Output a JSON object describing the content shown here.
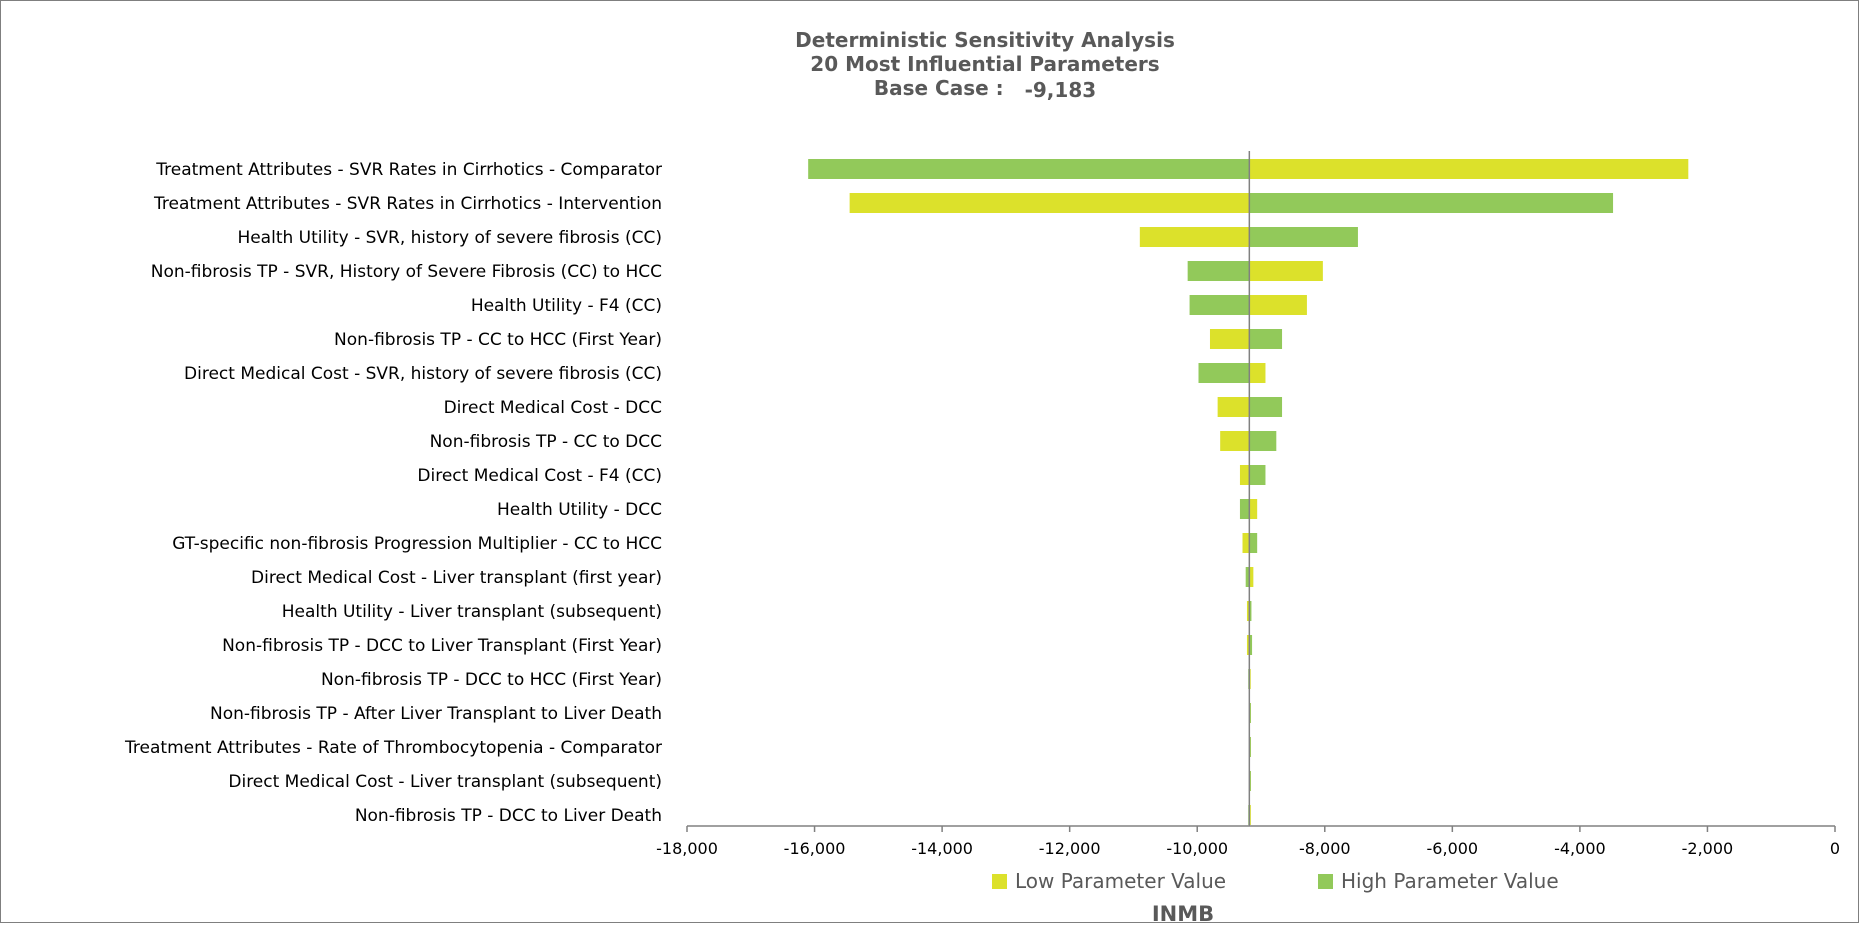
{
  "chart_data": {
    "type": "bar",
    "orientation": "horizontal",
    "title": "Deterministic Sensitivity Analysis",
    "subtitle": "20 Most Influential Parameters",
    "base_case_label": "Base Case :",
    "base_case_display": "-9,183",
    "base_case": -9183,
    "xlabel": "INMB",
    "xlim": [
      -18000,
      0
    ],
    "xticks": [
      -18000,
      -16000,
      -14000,
      -12000,
      -10000,
      -8000,
      -6000,
      -4000,
      -2000,
      0
    ],
    "xtick_labels": [
      "-18,000",
      "-16,000",
      "-14,000",
      "-12,000",
      "-10,000",
      "-8,000",
      "-6,000",
      "-4,000",
      "-2,000",
      "0"
    ],
    "legend_position": "bottom",
    "colors": {
      "low": "#dce12b",
      "high": "#92c95a",
      "axis": "#808080"
    },
    "categories": [
      "Treatment Attributes - SVR Rates in Cirrhotics - Comparator",
      "Treatment Attributes - SVR Rates in Cirrhotics - Intervention",
      "Health Utility - SVR, history of severe fibrosis (CC)",
      "Non-fibrosis TP - SVR, History of Severe Fibrosis (CC) to HCC",
      "Health Utility - F4 (CC)",
      "Non-fibrosis TP - CC to HCC (First Year)",
      "Direct Medical Cost - SVR, history of severe fibrosis (CC)",
      "Direct Medical Cost - DCC",
      "Non-fibrosis TP - CC to DCC",
      "Direct Medical Cost - F4 (CC)",
      "Health Utility - DCC",
      "GT-specific non-fibrosis Progression Multiplier - CC to HCC",
      "Direct Medical Cost - Liver transplant (first year)",
      "Health Utility - Liver transplant (subsequent)",
      "Non-fibrosis TP - DCC to Liver Transplant (First Year)",
      "Non-fibrosis TP - DCC to HCC (First Year)",
      "Non-fibrosis TP - After Liver Transplant to Liver Death",
      "Treatment Attributes - Rate of Thrombocytopenia - Comparator",
      "Direct Medical Cost - Liver transplant (subsequent)",
      "Non-fibrosis TP - DCC to Liver Death"
    ],
    "series": [
      {
        "name": "Low Parameter Value",
        "values": [
          -2300,
          -15450,
          -10900,
          -8030,
          -8280,
          -9800,
          -8930,
          -9680,
          -9640,
          -9330,
          -9060,
          -9290,
          -9120,
          -9220,
          -9220,
          -9185,
          -9183,
          -9183,
          -9183,
          -9183
        ]
      },
      {
        "name": "High Parameter Value",
        "values": [
          -16100,
          -3480,
          -7480,
          -10150,
          -10120,
          -8670,
          -9980,
          -8670,
          -8760,
          -8930,
          -9330,
          -9060,
          -9240,
          -9150,
          -9140,
          -9200,
          -9170,
          -9170,
          -9170,
          -9200
        ]
      }
    ]
  }
}
